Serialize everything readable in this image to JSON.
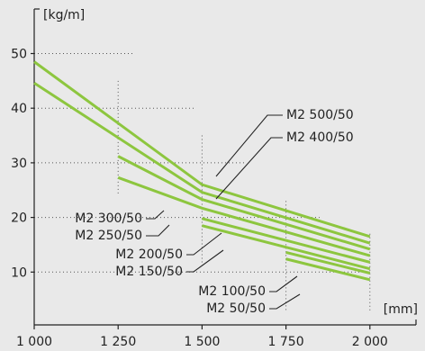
{
  "chart_data": {
    "type": "line",
    "title": "",
    "ylabel": "[kg/m]",
    "xlabel": "[mm]",
    "xlim": [
      1000,
      2000
    ],
    "ylim": [
      5,
      55
    ],
    "x_ticks": [
      {
        "value": 1000,
        "label": "1 000"
      },
      {
        "value": 1250,
        "label": "1 250"
      },
      {
        "value": 1500,
        "label": "1 500"
      },
      {
        "value": 1750,
        "label": "1 750"
      },
      {
        "value": 2000,
        "label": "2 000"
      }
    ],
    "y_ticks": [
      {
        "value": 10,
        "label": "10"
      },
      {
        "value": 20,
        "label": "20"
      },
      {
        "value": 30,
        "label": "30"
      },
      {
        "value": 40,
        "label": "40"
      },
      {
        "value": 50,
        "label": "50"
      }
    ],
    "grid": "dotted reference lines",
    "series": [
      {
        "name": "M2 500/50",
        "x": [
          1000,
          1500,
          2000
        ],
        "y": [
          48.5,
          26.0,
          16.5
        ]
      },
      {
        "name": "M2 400/50",
        "x": [
          1000,
          1500,
          2000
        ],
        "y": [
          44.6,
          24.6,
          15.3
        ]
      },
      {
        "name": "M2 300/50",
        "x": [
          1250,
          1500,
          2000
        ],
        "y": [
          31.2,
          23.3,
          14.2
        ]
      },
      {
        "name": "M2 250/50",
        "x": [
          1250,
          1500,
          2000
        ],
        "y": [
          27.3,
          21.7,
          13.0
        ]
      },
      {
        "name": "M2 200/50",
        "x": [
          1500,
          2000
        ],
        "y": [
          19.8,
          11.8
        ]
      },
      {
        "name": "M2 150/50",
        "x": [
          1500,
          2000
        ],
        "y": [
          18.5,
          10.6
        ]
      },
      {
        "name": "M2 100/50",
        "x": [
          1750,
          2000
        ],
        "y": [
          13.6,
          9.8
        ]
      },
      {
        "name": "M2 50/50",
        "x": [
          1750,
          2000
        ],
        "y": [
          12.4,
          8.6
        ]
      }
    ],
    "series_color": "#8dc63f"
  }
}
